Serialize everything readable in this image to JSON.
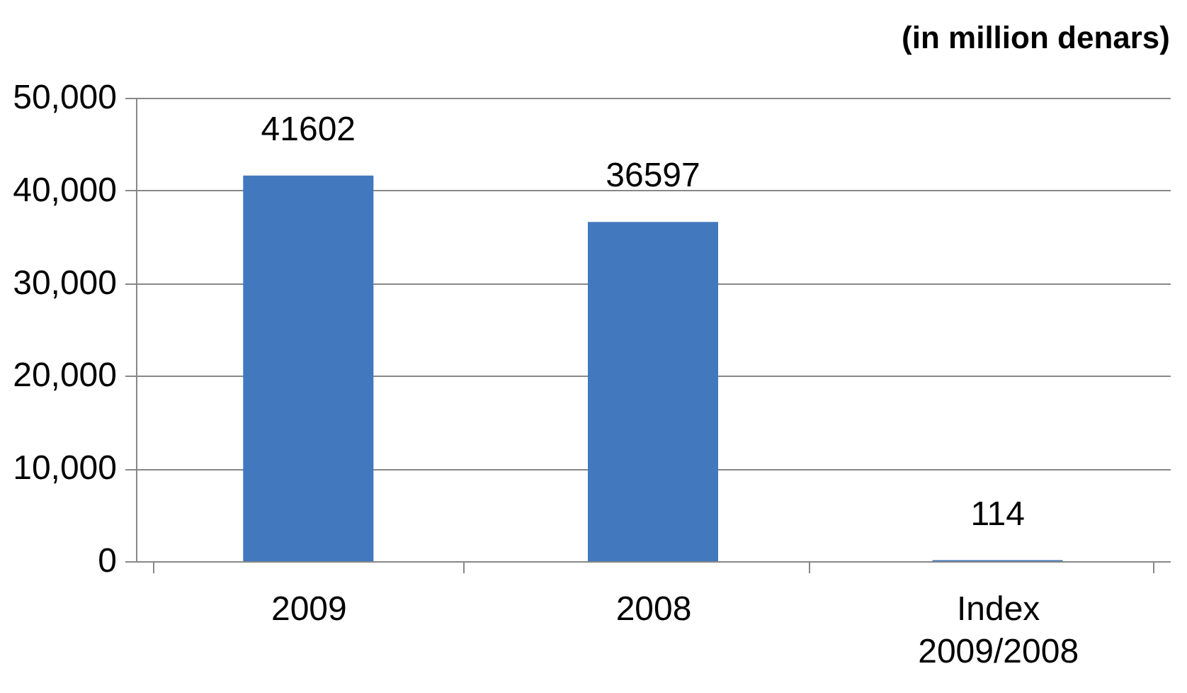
{
  "chart_data": {
    "type": "bar",
    "title": "(in million denars)",
    "categories": [
      "2009",
      "2008",
      "Index 2009/2008"
    ],
    "values": [
      41602,
      36597,
      114
    ],
    "color": "#4178be",
    "ylim": [
      0,
      50000
    ],
    "yticks": [
      {
        "value": 0,
        "label": "0"
      },
      {
        "value": 10000,
        "label": "10,000"
      },
      {
        "value": 20000,
        "label": "20,000"
      },
      {
        "value": 30000,
        "label": "30,000"
      },
      {
        "value": 40000,
        "label": "40,000"
      },
      {
        "value": 50000,
        "label": "50,000"
      }
    ],
    "grid": "y",
    "data_labels": true
  }
}
